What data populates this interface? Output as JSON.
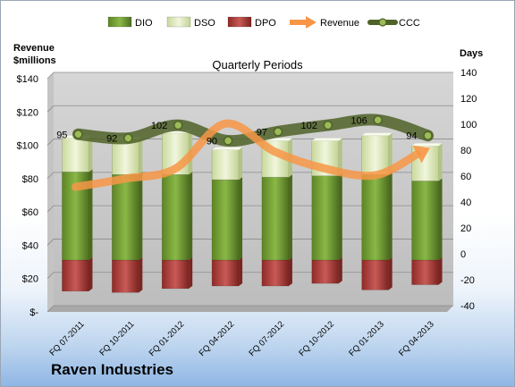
{
  "chart_data": {
    "type": "bar",
    "title": "Quarterly Periods",
    "company": "Raven Industries",
    "left_axis_label": [
      "Revenue",
      "$millions"
    ],
    "right_axis_label": "Days",
    "categories": [
      "FQ 07-2011",
      "FQ 10-2011",
      "FQ 01-2012",
      "FQ 04-2012",
      "FQ 07-2012",
      "FQ 10-2012",
      "FQ 01-2013",
      "FQ 04-2013"
    ],
    "left_ticks": [
      "$-",
      "$20",
      "$40",
      "$60",
      "$80",
      "$100",
      "$120",
      "$140"
    ],
    "right_ticks": [
      "-40",
      "-20",
      "0",
      "20",
      "40",
      "60",
      "80",
      "100",
      "120",
      "140"
    ],
    "left_ylim": [
      0,
      140
    ],
    "right_ylim": [
      -40,
      140
    ],
    "legend": [
      "DIO",
      "DSO",
      "DPO",
      "Revenue",
      "CCC"
    ],
    "legend_position": "top",
    "series": [
      {
        "name": "DIO",
        "axis": "days",
        "color": "#77a033",
        "values": [
          68,
          66,
          66,
          62,
          64,
          65,
          66,
          61
        ]
      },
      {
        "name": "DSO",
        "axis": "days",
        "color": "#e2ecbd",
        "values": [
          26,
          27,
          32,
          23,
          28,
          27,
          30,
          27
        ]
      },
      {
        "name": "DPO",
        "axis": "days",
        "color": "#c0504d",
        "values": [
          -24,
          -25,
          -22,
          -20,
          -20,
          -18,
          -23,
          -19
        ]
      },
      {
        "name": "Revenue",
        "axis": "revenue",
        "color": "#f79646",
        "values": [
          75,
          80,
          86,
          113,
          96,
          86,
          82,
          97
        ]
      },
      {
        "name": "CCC",
        "axis": "days",
        "color": "#4f6228",
        "values": [
          95,
          92,
          102,
          90,
          97,
          102,
          106,
          94
        ]
      }
    ],
    "ccc_labels": [
      "95",
      "92",
      "102",
      "90",
      "97",
      "102",
      "106",
      "94"
    ],
    "grid": true
  }
}
